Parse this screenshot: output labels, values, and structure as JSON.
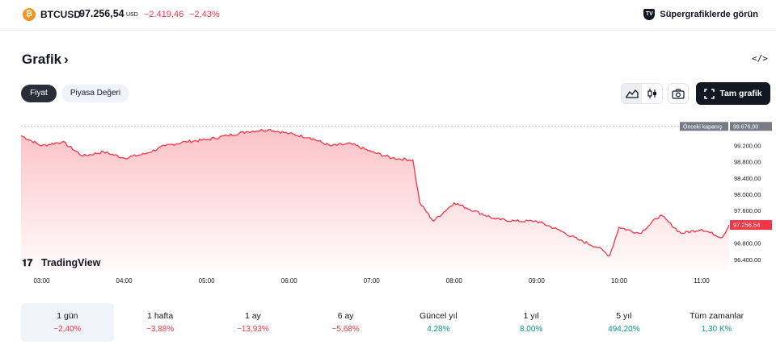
{
  "ticker": {
    "icon": "bitcoin-icon",
    "symbol": "BTCUSD",
    "price": "97.256,54",
    "currency": "USD",
    "change": "−2.419,46",
    "change_percent": "−2,43%",
    "change_color": "#f23645"
  },
  "supercharts": {
    "label": "Süpergrafiklerde görün",
    "icon": "tradingview-logo-icon"
  },
  "section": {
    "title": "Grafik",
    "chevron": "›",
    "embed_label": "</>"
  },
  "tabs": [
    {
      "label": "Fiyat",
      "active": true
    },
    {
      "label": "Piyasa Değeri",
      "active": false
    }
  ],
  "toolbar": {
    "area_icon": "area-chart-icon",
    "candle_icon": "candlestick-icon",
    "camera_icon": "camera-icon",
    "full_chart_label": "Tam grafik"
  },
  "branding": {
    "label": "TradingView"
  },
  "chart_data": {
    "type": "area",
    "series": [
      {
        "name": "BTCUSD",
        "color": "#f23645",
        "x": [
          "02:45",
          "03:00",
          "03:15",
          "03:30",
          "03:45",
          "04:00",
          "04:15",
          "04:30",
          "04:45",
          "05:00",
          "05:15",
          "05:30",
          "05:45",
          "06:00",
          "06:15",
          "06:30",
          "06:45",
          "07:00",
          "07:15",
          "07:30",
          "07:35",
          "07:45",
          "08:00",
          "08:15",
          "08:30",
          "08:45",
          "09:00",
          "09:15",
          "09:30",
          "09:45",
          "09:53",
          "10:00",
          "10:15",
          "10:30",
          "10:45",
          "11:00",
          "11:15",
          "11:20"
        ],
        "values": [
          99450,
          99200,
          99300,
          98950,
          99050,
          98900,
          99000,
          99200,
          99300,
          99350,
          99450,
          99550,
          99600,
          99500,
          99400,
          99200,
          99250,
          99050,
          98900,
          98850,
          97800,
          97350,
          97800,
          97600,
          97400,
          97350,
          97350,
          97150,
          96900,
          96700,
          96500,
          97200,
          97050,
          97500,
          97050,
          97150,
          96950,
          97256.54
        ]
      }
    ],
    "reference_line": {
      "label": "Önceki kapanış",
      "value": "99.676,00",
      "y": 99676
    },
    "last_price_label": "97.256,54",
    "y_ticks": [
      "99.200,00",
      "98.800,00",
      "98.400,00",
      "98.000,00",
      "97.600,00",
      "96.800,00",
      "96.400,00"
    ],
    "y_tick_values": [
      99200,
      98800,
      98400,
      98000,
      97600,
      96800,
      96400
    ],
    "x_ticks": [
      "03:00",
      "04:00",
      "05:00",
      "06:00",
      "07:00",
      "08:00",
      "09:00",
      "10:00",
      "11:00"
    ],
    "ylim": [
      96130,
      99850
    ],
    "grid": false,
    "legend": "none"
  },
  "ranges": [
    {
      "label": "1 gün",
      "value": "−2,40%",
      "dir": "neg",
      "selected": true
    },
    {
      "label": "1 hafta",
      "value": "−3,88%",
      "dir": "neg",
      "selected": false
    },
    {
      "label": "1 ay",
      "value": "−13,93%",
      "dir": "neg",
      "selected": false
    },
    {
      "label": "6 ay",
      "value": "−5,68%",
      "dir": "neg",
      "selected": false
    },
    {
      "label": "Güncel yıl",
      "value": "4,28%",
      "dir": "pos",
      "selected": false
    },
    {
      "label": "1 yıl",
      "value": "8,00%",
      "dir": "pos",
      "selected": false
    },
    {
      "label": "5 yıl",
      "value": "494,20%",
      "dir": "pos",
      "selected": false
    },
    {
      "label": "Tüm zamanlar",
      "value": "1,30 K%",
      "dir": "pos",
      "selected": false
    }
  ]
}
